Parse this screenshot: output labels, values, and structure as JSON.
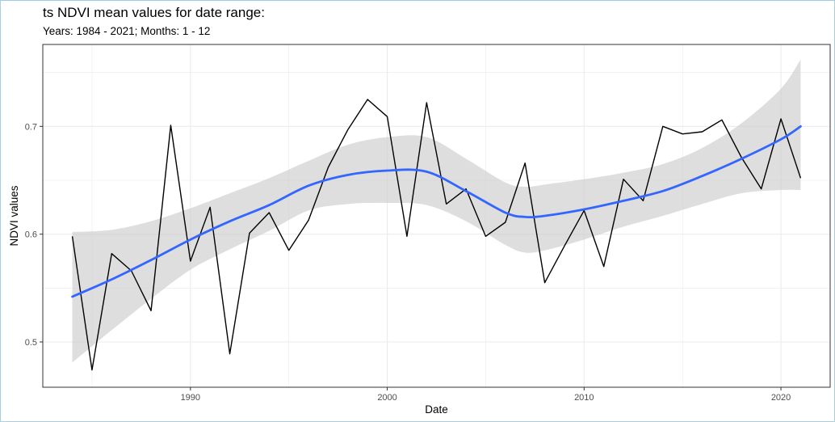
{
  "chart_data": {
    "type": "line",
    "title": "ts NDVI mean values for date range:",
    "subtitle": "Years: 1984 - 2021; Months: 1 - 12",
    "xlabel": "Date",
    "ylabel": "NDVI values",
    "xlim": [
      1982.5,
      2022.5
    ],
    "ylim": [
      0.458,
      0.776
    ],
    "x_ticks": [
      1990,
      2000,
      2010,
      2020
    ],
    "x_tick_labels": [
      "1990",
      "2000",
      "2010",
      "2020"
    ],
    "y_ticks": [
      0.5,
      0.6,
      0.7
    ],
    "y_tick_labels": [
      "0.5",
      "0.6",
      "0.7"
    ],
    "grid": true,
    "legend": "none",
    "colors": {
      "series": "#000000",
      "smooth": "#3366ff",
      "band": "#cccccc",
      "grid": "#ebebeb",
      "panel_border": "#333333"
    },
    "series": [
      {
        "x": [
          1984,
          1985,
          1986,
          1987,
          1988,
          1989,
          1990,
          1991,
          1992,
          1993,
          1994,
          1995,
          1996,
          1997,
          1998,
          1999,
          2000,
          2001,
          2002,
          2003,
          2004,
          2005,
          2006,
          2007,
          2008,
          2009,
          2010,
          2011,
          2012,
          2013,
          2014,
          2015,
          2016,
          2017,
          2018,
          2019,
          2020,
          2021
        ],
        "values": [
          0.598,
          0.474,
          0.582,
          0.566,
          0.529,
          0.701,
          0.575,
          0.625,
          0.489,
          0.601,
          0.62,
          0.585,
          0.613,
          0.662,
          0.697,
          0.725,
          0.709,
          0.598,
          0.722,
          0.628,
          0.642,
          0.598,
          0.611,
          0.666,
          0.555,
          0.589,
          0.622,
          0.57,
          0.651,
          0.631,
          0.7,
          0.693,
          0.695,
          0.706,
          0.671,
          0.642,
          0.707,
          0.652
        ]
      },
      {
        "type": "smooth",
        "x": [
          1984,
          1986,
          1988,
          1990,
          1992,
          1994,
          1996,
          1998,
          2000,
          2002,
          2004,
          2006,
          2007,
          2008,
          2010,
          2012,
          2014,
          2016,
          2018,
          2020,
          2021
        ],
        "values": [
          0.542,
          0.558,
          0.576,
          0.595,
          0.612,
          0.627,
          0.645,
          0.655,
          0.659,
          0.658,
          0.64,
          0.62,
          0.616,
          0.617,
          0.623,
          0.631,
          0.64,
          0.654,
          0.67,
          0.688,
          0.7
        ],
        "lower": [
          0.481,
          0.511,
          0.54,
          0.567,
          0.586,
          0.603,
          0.622,
          0.628,
          0.629,
          0.627,
          0.612,
          0.59,
          0.583,
          0.585,
          0.595,
          0.607,
          0.617,
          0.628,
          0.638,
          0.641,
          0.641
        ],
        "upper": [
          0.602,
          0.604,
          0.612,
          0.624,
          0.638,
          0.652,
          0.668,
          0.683,
          0.69,
          0.69,
          0.67,
          0.648,
          0.644,
          0.646,
          0.651,
          0.657,
          0.665,
          0.68,
          0.703,
          0.735,
          0.762
        ]
      }
    ]
  }
}
